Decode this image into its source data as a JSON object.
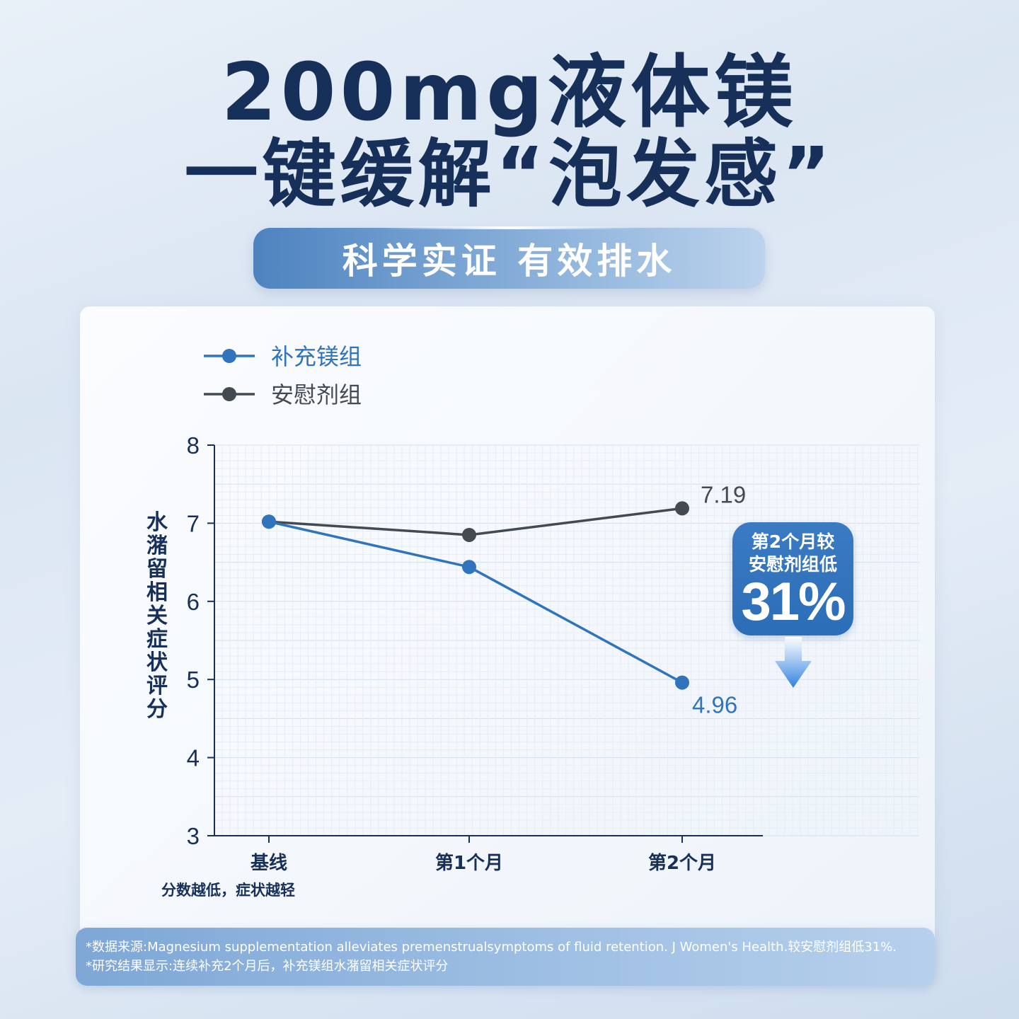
{
  "header": {
    "title_line1": "200mg液体镁",
    "title_line2": "一键缓解“泡发感”",
    "pill_text": "科学实证 有效排水"
  },
  "colors": {
    "supplement": "#2f74bd",
    "placebo": "#444a52",
    "title": "#17305a"
  },
  "chart_data": {
    "type": "line",
    "categories": [
      "基线",
      "第1个月",
      "第2个月"
    ],
    "series": [
      {
        "name": "补充镁组",
        "values": [
          7.02,
          6.44,
          4.96
        ],
        "end_label": "4.96"
      },
      {
        "name": "安慰剂组",
        "values": [
          7.02,
          6.85,
          7.19
        ],
        "end_label": "7.19"
      }
    ],
    "ylabel": "水潴留相关症状评分",
    "ylim": [
      3,
      8
    ],
    "yticks": [
      "3",
      "4",
      "5",
      "6",
      "7",
      "8"
    ],
    "grid": true,
    "legend": "top-left"
  },
  "callout": {
    "line1": "第2个月较",
    "line2": "安慰剂组低",
    "value": "31%",
    "icon": "down-arrow-icon"
  },
  "note": "分数越低，症状越轻",
  "source": {
    "line1": "*数据来源:Magnesium supplementation alleviates premenstrualsymptoms of fluid retention. J Women's Health.较安慰剂组低31%.",
    "line2": "*研究结果显示:连续补充2个月后，补充镁组水潴留相关症状评分"
  }
}
